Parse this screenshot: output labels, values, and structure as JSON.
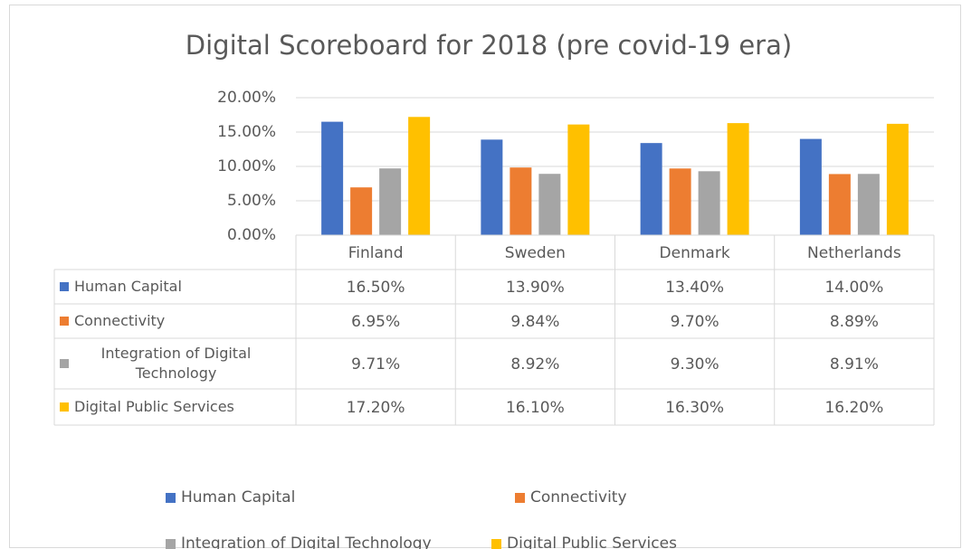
{
  "chart_data": {
    "type": "bar",
    "title": "Digital Scoreboard for 2018 (pre covid-19 era)",
    "categories": [
      "Finland",
      "Sweden",
      "Denmark",
      "Netherlands"
    ],
    "series": [
      {
        "name": "Human Capital",
        "color": "#4472c4",
        "values": [
          16.5,
          13.9,
          13.4,
          14.0
        ],
        "value_labels": [
          "16.50%",
          "13.90%",
          "13.40%",
          "14.00%"
        ]
      },
      {
        "name": "Connectivity",
        "color": "#ed7d31",
        "values": [
          6.95,
          9.84,
          9.7,
          8.89
        ],
        "value_labels": [
          "6.95%",
          "9.84%",
          "9.70%",
          "8.89%"
        ]
      },
      {
        "name": "Integration of Digital Technology",
        "color": "#a5a5a5",
        "values": [
          9.71,
          8.92,
          9.3,
          8.91
        ],
        "value_labels": [
          "9.71%",
          "8.92%",
          "9.30%",
          "8.91%"
        ]
      },
      {
        "name": "Digital Public Services",
        "color": "#ffc000",
        "values": [
          17.2,
          16.1,
          16.3,
          16.2
        ],
        "value_labels": [
          "17.20%",
          "16.10%",
          "16.30%",
          "16.20%"
        ]
      }
    ],
    "ylim": [
      0,
      20
    ],
    "yticks": [
      {
        "value": 0,
        "label": "0.00%"
      },
      {
        "value": 5,
        "label": "5.00%"
      },
      {
        "value": 10,
        "label": "10.00%"
      },
      {
        "value": 15,
        "label": "15.00%"
      },
      {
        "value": 20,
        "label": "20.00%"
      }
    ],
    "grid": true,
    "legend": "bottom"
  }
}
